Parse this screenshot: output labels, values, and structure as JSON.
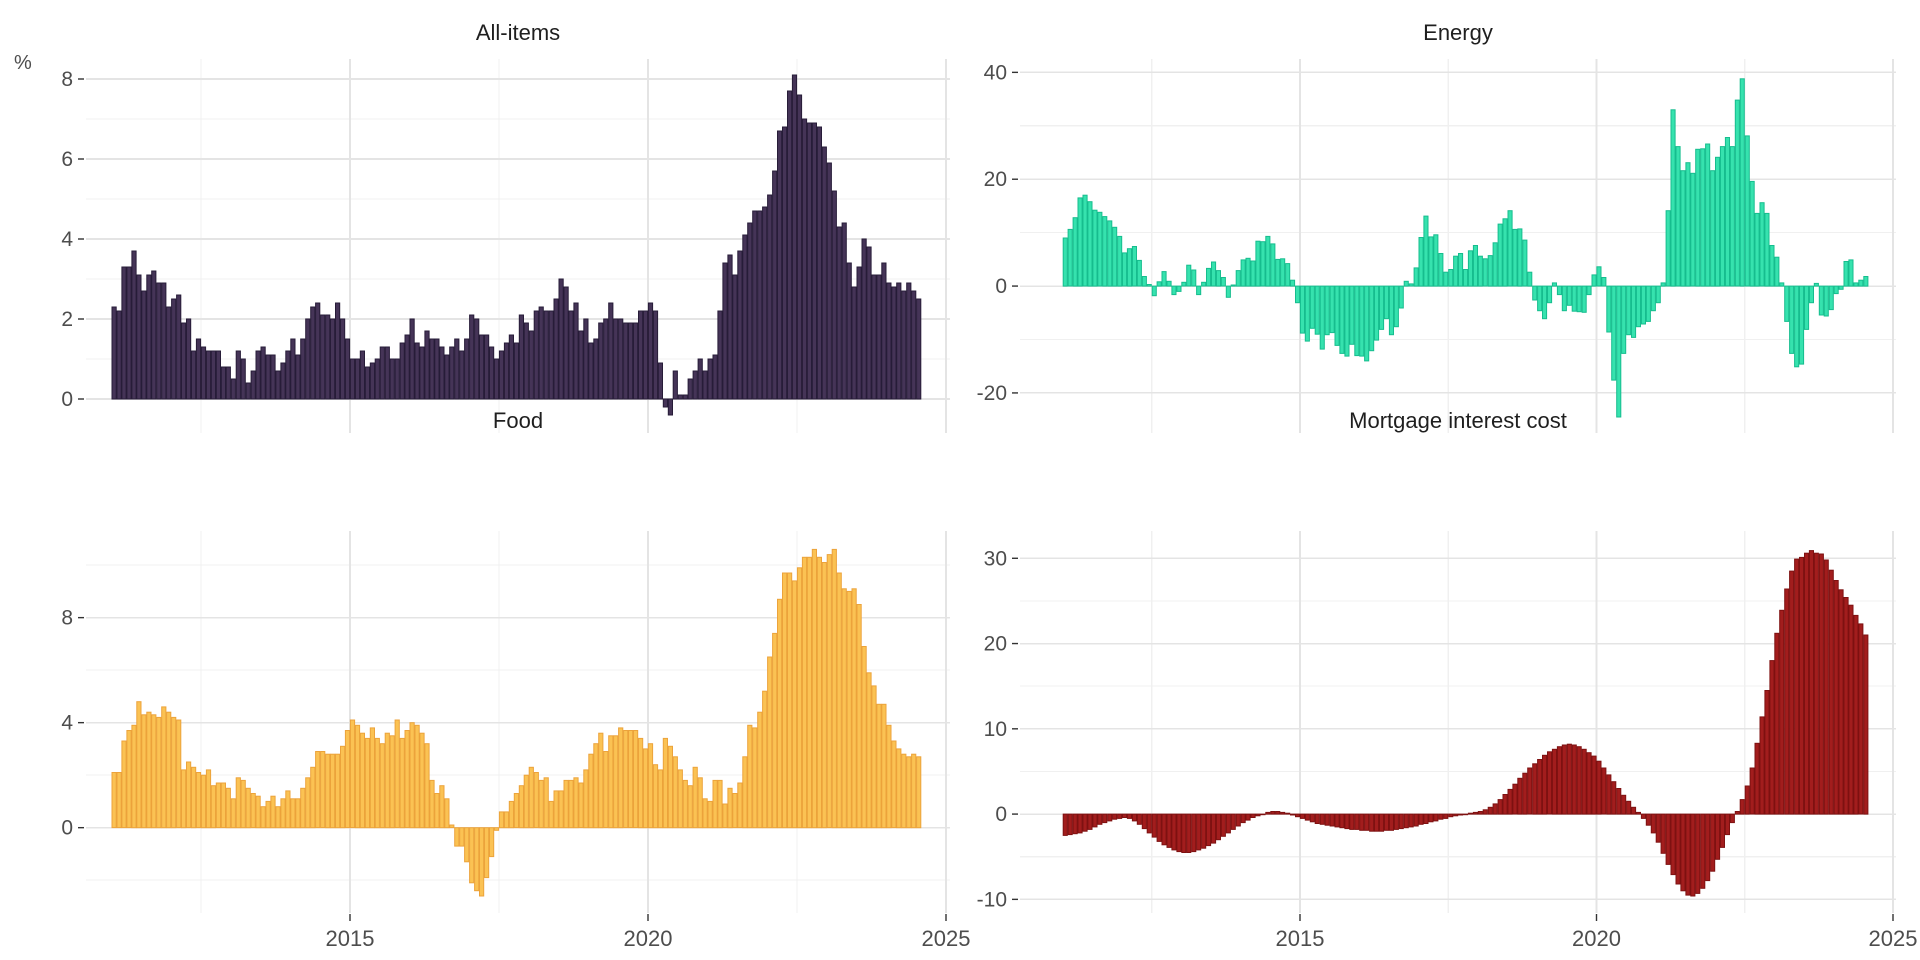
{
  "figure": {
    "y_axis_title": "%",
    "background": "#ffffff",
    "grid_major_color": "#e4e4e4",
    "grid_minor_color": "#f0f0f0",
    "tick_color": "#333333",
    "axis_label_color": "#4d4d4d",
    "title_color": "#1f1f1f"
  },
  "chart_data": [
    {
      "id": "all-items",
      "type": "bar",
      "title": "All-items",
      "unit": "%",
      "bar_fill": "#453457",
      "bar_stroke": "#271c38",
      "frequency": "monthly",
      "x_start": "2011-01",
      "x_end": "2024-07",
      "x_ticks": [
        {
          "year": 2015,
          "label": "2015"
        },
        {
          "year": 2020,
          "label": "2020"
        },
        {
          "year": 2025,
          "label": "2025"
        }
      ],
      "x_minor_years": [
        2012.5,
        2017.5,
        2022.5
      ],
      "x_tick_labels_visible": false,
      "y_major_ticks": [
        0,
        2,
        4,
        6,
        8
      ],
      "y_minor_ticks": [
        1,
        3,
        5,
        7
      ],
      "ylim": [
        -0.85,
        8.5
      ],
      "values": [
        2.3,
        2.2,
        3.3,
        3.3,
        3.7,
        3.1,
        2.7,
        3.1,
        3.2,
        2.9,
        2.9,
        2.3,
        2.5,
        2.6,
        1.9,
        2.0,
        1.2,
        1.5,
        1.3,
        1.2,
        1.2,
        1.2,
        0.8,
        0.8,
        0.5,
        1.2,
        1.0,
        0.4,
        0.7,
        1.2,
        1.3,
        1.1,
        1.1,
        0.7,
        0.9,
        1.2,
        1.5,
        1.1,
        1.5,
        2.0,
        2.3,
        2.4,
        2.1,
        2.1,
        2.0,
        2.4,
        2.0,
        1.5,
        1.0,
        1.0,
        1.2,
        0.8,
        0.9,
        1.0,
        1.3,
        1.3,
        1.0,
        1.0,
        1.4,
        1.6,
        2.0,
        1.4,
        1.3,
        1.7,
        1.5,
        1.5,
        1.3,
        1.1,
        1.3,
        1.5,
        1.2,
        1.5,
        2.1,
        2.0,
        1.6,
        1.6,
        1.3,
        1.0,
        1.2,
        1.4,
        1.6,
        1.4,
        2.1,
        1.9,
        1.7,
        2.2,
        2.3,
        2.2,
        2.2,
        2.5,
        3.0,
        2.8,
        2.2,
        2.4,
        1.7,
        2.0,
        1.4,
        1.5,
        1.9,
        2.0,
        2.4,
        2.0,
        2.0,
        1.9,
        1.9,
        1.9,
        2.2,
        2.2,
        2.4,
        2.2,
        0.9,
        -0.2,
        -0.4,
        0.7,
        0.1,
        0.1,
        0.5,
        0.7,
        1.0,
        0.7,
        1.0,
        1.1,
        2.2,
        3.4,
        3.6,
        3.1,
        3.7,
        4.1,
        4.4,
        4.7,
        4.7,
        4.8,
        5.1,
        5.7,
        6.7,
        6.8,
        7.7,
        8.1,
        7.6,
        7.0,
        6.9,
        6.9,
        6.8,
        6.3,
        5.9,
        5.2,
        4.3,
        4.4,
        3.4,
        2.8,
        3.3,
        4.0,
        3.8,
        3.1,
        3.1,
        3.4,
        2.9,
        2.8,
        2.9,
        2.7,
        2.9,
        2.7,
        2.5
      ]
    },
    {
      "id": "energy",
      "type": "bar",
      "title": "Energy",
      "unit": "%",
      "bar_fill": "#36e2ae",
      "bar_stroke": "#16bd8e",
      "frequency": "monthly",
      "x_start": "2011-01",
      "x_end": "2024-07",
      "x_ticks": [
        {
          "year": 2015,
          "label": "2015"
        },
        {
          "year": 2020,
          "label": "2020"
        },
        {
          "year": 2025,
          "label": "2025"
        }
      ],
      "x_minor_years": [
        2012.5,
        2017.5,
        2022.5
      ],
      "x_tick_labels_visible": false,
      "y_major_ticks": [
        -20,
        0,
        20,
        40
      ],
      "y_minor_ticks": [
        -10,
        10,
        30
      ],
      "ylim": [
        -27.5,
        42.5
      ],
      "values": [
        9.0,
        10.6,
        12.8,
        16.5,
        17.0,
        15.8,
        14.2,
        13.8,
        13.0,
        12.2,
        11.0,
        9.3,
        6.2,
        7.0,
        7.4,
        4.8,
        1.8,
        0.3,
        -1.8,
        0.8,
        2.7,
        0.9,
        -1.6,
        -1.0,
        0.7,
        3.9,
        3.0,
        -1.6,
        0.7,
        3.3,
        4.5,
        2.9,
        1.6,
        -2.1,
        0.2,
        2.9,
        4.9,
        5.2,
        4.7,
        8.4,
        8.3,
        9.3,
        7.9,
        5.0,
        5.1,
        4.2,
        1.1,
        -3.1,
        -8.8,
        -10.3,
        -7.9,
        -9.0,
        -11.8,
        -9.1,
        -8.7,
        -11.1,
        -12.6,
        -13.1,
        -10.9,
        -13.0,
        -13.1,
        -14.0,
        -12.1,
        -10.1,
        -8.1,
        -6.1,
        -9.1,
        -7.6,
        -4.1,
        0.9,
        0.4,
        3.4,
        9.1,
        13.1,
        9.2,
        9.6,
        6.1,
        2.6,
        3.1,
        5.6,
        6.1,
        3.1,
        6.6,
        7.6,
        5.6,
        5.1,
        5.7,
        8.1,
        11.6,
        12.6,
        14.1,
        10.6,
        10.7,
        8.6,
        2.6,
        -2.6,
        -4.6,
        -6.1,
        -3.1,
        0.6,
        -1.6,
        -4.6,
        -3.6,
        -4.7,
        -4.8,
        -4.9,
        -1.6,
        2.1,
        3.6,
        1.6,
        -8.6,
        -17.6,
        -24.5,
        -12.6,
        -9.1,
        -9.6,
        -7.6,
        -7.1,
        -6.6,
        -4.6,
        -3.1,
        0.6,
        14.1,
        33.0,
        26.1,
        21.6,
        23.1,
        21.1,
        25.6,
        25.7,
        26.6,
        21.6,
        24.1,
        26.1,
        27.8,
        26.1,
        34.8,
        38.8,
        28.1,
        19.6,
        13.6,
        15.6,
        13.6,
        7.6,
        5.4,
        0.6,
        -6.6,
        -12.6,
        -15.1,
        -14.6,
        -8.1,
        -3.1,
        0.5,
        -5.4,
        -5.6,
        -4.4,
        -1.4,
        -0.6,
        4.6,
        4.9,
        0.6,
        1.1,
        1.8
      ]
    },
    {
      "id": "food",
      "type": "bar",
      "title": "Food",
      "unit": "%",
      "bar_fill": "#fbc253",
      "bar_stroke": "#eca33b",
      "frequency": "monthly",
      "x_start": "2011-01",
      "x_end": "2024-07",
      "x_ticks": [
        {
          "year": 2015,
          "label": "2015"
        },
        {
          "year": 2020,
          "label": "2020"
        },
        {
          "year": 2025,
          "label": "2025"
        }
      ],
      "x_minor_years": [
        2012.5,
        2017.5,
        2022.5
      ],
      "x_tick_labels_visible": true,
      "y_major_ticks": [
        0,
        4,
        8
      ],
      "y_minor_ticks": [
        -2,
        2,
        6,
        10
      ],
      "ylim": [
        -3.25,
        11.3
      ],
      "values": [
        2.1,
        2.1,
        3.3,
        3.7,
        3.9,
        4.8,
        4.3,
        4.4,
        4.3,
        4.2,
        4.6,
        4.4,
        4.2,
        4.1,
        2.2,
        2.5,
        2.3,
        2.1,
        2.0,
        2.2,
        1.6,
        1.7,
        1.7,
        1.5,
        1.1,
        1.9,
        1.8,
        1.5,
        1.3,
        1.2,
        0.8,
        1.0,
        1.2,
        0.8,
        1.1,
        1.4,
        1.1,
        1.1,
        1.5,
        1.9,
        2.3,
        2.9,
        2.9,
        2.8,
        2.8,
        2.8,
        3.1,
        3.7,
        4.1,
        3.9,
        3.6,
        3.4,
        3.8,
        3.4,
        3.2,
        3.6,
        3.5,
        4.1,
        3.4,
        3.7,
        4.0,
        3.9,
        3.6,
        3.2,
        1.8,
        1.3,
        1.6,
        1.1,
        0.1,
        -0.7,
        -0.7,
        -1.3,
        -2.1,
        -2.4,
        -2.6,
        -1.9,
        -1.1,
        -0.1,
        0.6,
        0.6,
        1.0,
        1.3,
        1.6,
        2.0,
        2.3,
        2.1,
        1.8,
        1.9,
        1.0,
        1.4,
        1.4,
        1.8,
        1.8,
        1.9,
        1.7,
        2.2,
        2.8,
        3.2,
        3.6,
        2.9,
        3.5,
        3.5,
        3.8,
        3.7,
        3.7,
        3.7,
        3.4,
        3.0,
        3.2,
        2.4,
        2.2,
        3.4,
        3.1,
        2.7,
        2.2,
        1.8,
        1.6,
        2.3,
        1.9,
        1.1,
        1.0,
        1.8,
        1.8,
        0.9,
        1.5,
        1.3,
        1.7,
        2.7,
        3.9,
        3.8,
        4.4,
        5.2,
        6.5,
        7.4,
        8.7,
        9.7,
        9.7,
        9.4,
        9.9,
        10.3,
        10.3,
        10.6,
        10.3,
        10.1,
        10.4,
        10.6,
        9.7,
        9.1,
        9.0,
        9.1,
        8.5,
        6.9,
        5.9,
        5.4,
        4.7,
        4.7,
        3.9,
        3.3,
        3.0,
        2.8,
        2.7,
        2.8,
        2.7
      ]
    },
    {
      "id": "mortgage-interest-cost",
      "type": "bar",
      "title": "Mortgage interest cost",
      "unit": "%",
      "bar_fill": "#a21d1d",
      "bar_stroke": "#7e1111",
      "frequency": "monthly",
      "x_start": "2011-01",
      "x_end": "2024-07",
      "x_ticks": [
        {
          "year": 2015,
          "label": "2015"
        },
        {
          "year": 2020,
          "label": "2020"
        },
        {
          "year": 2025,
          "label": "2025"
        }
      ],
      "x_minor_years": [
        2012.5,
        2017.5,
        2022.5
      ],
      "x_tick_labels_visible": true,
      "y_major_ticks": [
        -10,
        0,
        10,
        20,
        30
      ],
      "y_minor_ticks": [
        -5,
        5,
        15,
        25
      ],
      "ylim": [
        -11.6,
        33.2
      ],
      "values": [
        -2.5,
        -2.4,
        -2.3,
        -2.2,
        -2.0,
        -1.8,
        -1.5,
        -1.2,
        -1.0,
        -0.8,
        -0.6,
        -0.5,
        -0.4,
        -0.5,
        -0.8,
        -1.2,
        -1.7,
        -2.2,
        -2.7,
        -3.2,
        -3.6,
        -3.9,
        -4.2,
        -4.4,
        -4.5,
        -4.5,
        -4.4,
        -4.2,
        -4.0,
        -3.7,
        -3.4,
        -3.0,
        -2.6,
        -2.2,
        -1.8,
        -1.4,
        -1.0,
        -0.7,
        -0.4,
        -0.2,
        0.0,
        0.2,
        0.3,
        0.3,
        0.2,
        0.1,
        -0.1,
        -0.3,
        -0.5,
        -0.7,
        -0.9,
        -1.1,
        -1.2,
        -1.3,
        -1.4,
        -1.5,
        -1.6,
        -1.7,
        -1.8,
        -1.8,
        -1.9,
        -1.9,
        -2.0,
        -2.0,
        -2.0,
        -1.9,
        -1.9,
        -1.8,
        -1.7,
        -1.6,
        -1.5,
        -1.4,
        -1.2,
        -1.1,
        -0.9,
        -0.8,
        -0.6,
        -0.5,
        -0.3,
        -0.2,
        -0.1,
        0.0,
        0.1,
        0.2,
        0.3,
        0.5,
        0.8,
        1.2,
        1.7,
        2.3,
        2.9,
        3.5,
        4.2,
        4.8,
        5.4,
        5.9,
        6.4,
        6.9,
        7.3,
        7.6,
        7.9,
        8.1,
        8.2,
        8.1,
        7.9,
        7.6,
        7.2,
        6.8,
        6.2,
        5.4,
        4.6,
        3.8,
        3.0,
        2.2,
        1.5,
        0.8,
        0.2,
        -0.5,
        -1.3,
        -2.2,
        -3.3,
        -4.6,
        -5.9,
        -7.1,
        -8.2,
        -9.0,
        -9.5,
        -9.6,
        -9.3,
        -8.7,
        -7.8,
        -6.7,
        -5.3,
        -3.9,
        -2.4,
        -1.0,
        0.3,
        1.7,
        3.3,
        5.4,
        8.3,
        11.4,
        14.5,
        18.0,
        21.2,
        23.9,
        26.4,
        28.5,
        29.9,
        30.1,
        30.6,
        30.9,
        30.6,
        30.5,
        29.8,
        28.6,
        27.4,
        26.3,
        25.4,
        24.5,
        23.3,
        22.3,
        21.0
      ]
    }
  ]
}
